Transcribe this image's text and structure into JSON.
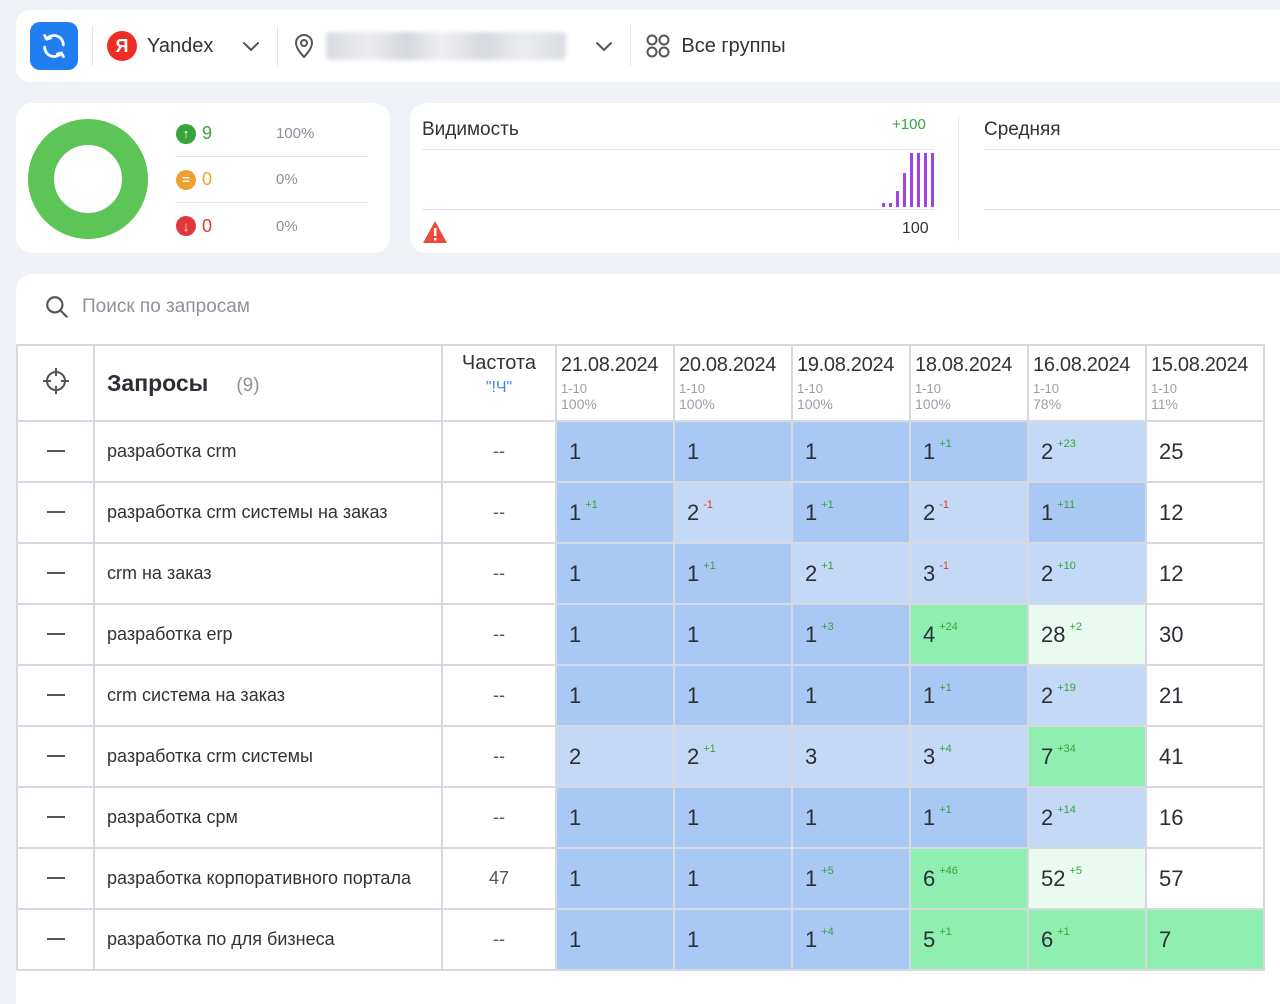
{
  "topbar": {
    "engine": "Yandex",
    "engine_logo_letter": "Я",
    "groups_label": "Все группы"
  },
  "summary": {
    "stats": [
      {
        "value": "9",
        "percent": "100%",
        "color": "#37a33a",
        "icon": "arrow-up-icon"
      },
      {
        "value": "0",
        "percent": "0%",
        "color": "#f0a030",
        "icon": "equal-icon"
      },
      {
        "value": "0",
        "percent": "0%",
        "color": "#e0383a",
        "icon": "arrow-down-icon"
      }
    ],
    "donut_color": "#5cc556"
  },
  "visibility": {
    "title": "Видимость",
    "delta": "+100",
    "value": "100",
    "bar_color": "#a044e8"
  },
  "average": {
    "title": "Средняя"
  },
  "search": {
    "placeholder": "Поиск по запросам"
  },
  "table": {
    "queries_title": "Запросы",
    "queries_count": "(9)",
    "freq_title": "Частота",
    "freq_sub": "\"!Ч\"",
    "dates": [
      {
        "date": "21.08.2024",
        "range": "1-10",
        "pct": "100%"
      },
      {
        "date": "20.08.2024",
        "range": "1-10",
        "pct": "100%"
      },
      {
        "date": "19.08.2024",
        "range": "1-10",
        "pct": "100%"
      },
      {
        "date": "18.08.2024",
        "range": "1-10",
        "pct": "100%"
      },
      {
        "date": "16.08.2024",
        "range": "1-10",
        "pct": "78%"
      },
      {
        "date": "15.08.2024",
        "range": "1-10",
        "pct": "11%"
      }
    ],
    "rows": [
      {
        "query": "разработка crm",
        "freq": "--",
        "cells": [
          [
            "1",
            "",
            "",
            "top"
          ],
          [
            "1",
            "",
            "",
            "top"
          ],
          [
            "1",
            "",
            "",
            "top"
          ],
          [
            "1",
            "+1",
            "up",
            "top"
          ],
          [
            "2",
            "+23",
            "up",
            "mid"
          ],
          [
            "25",
            "",
            "",
            "wht"
          ]
        ]
      },
      {
        "query": "разработка crm системы на заказ",
        "freq": "--",
        "cells": [
          [
            "1",
            "+1",
            "up",
            "top"
          ],
          [
            "2",
            "-1",
            "down",
            "mid"
          ],
          [
            "1",
            "+1",
            "up",
            "top"
          ],
          [
            "2",
            "-1",
            "down",
            "mid"
          ],
          [
            "1",
            "+11",
            "up",
            "top"
          ],
          [
            "12",
            "",
            "",
            "wht"
          ]
        ]
      },
      {
        "query": "crm на заказ",
        "freq": "--",
        "cells": [
          [
            "1",
            "",
            "",
            "top"
          ],
          [
            "1",
            "+1",
            "up",
            "top"
          ],
          [
            "2",
            "+1",
            "up",
            "mid"
          ],
          [
            "3",
            "-1",
            "down",
            "mid"
          ],
          [
            "2",
            "+10",
            "up",
            "mid"
          ],
          [
            "12",
            "",
            "",
            "wht"
          ]
        ]
      },
      {
        "query": "разработка erp",
        "freq": "--",
        "cells": [
          [
            "1",
            "",
            "",
            "top"
          ],
          [
            "1",
            "",
            "",
            "top"
          ],
          [
            "1",
            "+3",
            "up",
            "top"
          ],
          [
            "4",
            "+24",
            "up",
            "grn"
          ],
          [
            "28",
            "+2",
            "up",
            "lgr"
          ],
          [
            "30",
            "",
            "",
            "wht"
          ]
        ]
      },
      {
        "query": "crm система на заказ",
        "freq": "--",
        "cells": [
          [
            "1",
            "",
            "",
            "top"
          ],
          [
            "1",
            "",
            "",
            "top"
          ],
          [
            "1",
            "",
            "",
            "top"
          ],
          [
            "1",
            "+1",
            "up",
            "top"
          ],
          [
            "2",
            "+19",
            "up",
            "mid"
          ],
          [
            "21",
            "",
            "",
            "wht"
          ]
        ]
      },
      {
        "query": "разработка crm системы",
        "freq": "--",
        "cells": [
          [
            "2",
            "",
            "",
            "mid"
          ],
          [
            "2",
            "+1",
            "up",
            "mid"
          ],
          [
            "3",
            "",
            "",
            "mid"
          ],
          [
            "3",
            "+4",
            "up",
            "mid"
          ],
          [
            "7",
            "+34",
            "up",
            "grn"
          ],
          [
            "41",
            "",
            "",
            "wht"
          ]
        ]
      },
      {
        "query": "разработка срм",
        "freq": "--",
        "cells": [
          [
            "1",
            "",
            "",
            "top"
          ],
          [
            "1",
            "",
            "",
            "top"
          ],
          [
            "1",
            "",
            "",
            "top"
          ],
          [
            "1",
            "+1",
            "up",
            "top"
          ],
          [
            "2",
            "+14",
            "up",
            "mid"
          ],
          [
            "16",
            "",
            "",
            "wht"
          ]
        ]
      },
      {
        "query": "разработка корпоративного портала",
        "freq": "47",
        "cells": [
          [
            "1",
            "",
            "",
            "top"
          ],
          [
            "1",
            "",
            "",
            "top"
          ],
          [
            "1",
            "+5",
            "up",
            "top"
          ],
          [
            "6",
            "+46",
            "up",
            "grn"
          ],
          [
            "52",
            "+5",
            "up",
            "lgr"
          ],
          [
            "57",
            "",
            "",
            "wht"
          ]
        ]
      },
      {
        "query": "разработка по для бизнеса",
        "freq": "--",
        "cells": [
          [
            "1",
            "",
            "",
            "top"
          ],
          [
            "1",
            "",
            "",
            "top"
          ],
          [
            "1",
            "+4",
            "up",
            "top"
          ],
          [
            "5",
            "+1",
            "up",
            "grn"
          ],
          [
            "6",
            "+1",
            "up",
            "grn"
          ],
          [
            "7",
            "",
            "",
            "grn"
          ]
        ]
      }
    ]
  }
}
